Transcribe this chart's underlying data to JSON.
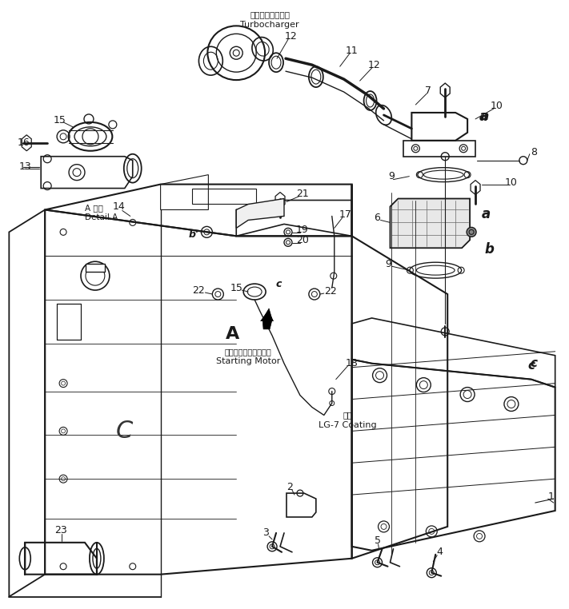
{
  "bg_color": "#ffffff",
  "lc": "#1a1a1a",
  "figsize": [
    7.11,
    7.62
  ],
  "dpi": 100,
  "turbo_jp": "ターボチャージャ",
  "turbo_en": "Turbocharger",
  "detail_jp": "A 詳細",
  "detail_en": "Detail A",
  "sm_jp": "スターティングモータ",
  "sm_en": "Starting Motor",
  "coat_jp": "塗布",
  "coat_en": "LG-7 Coating"
}
